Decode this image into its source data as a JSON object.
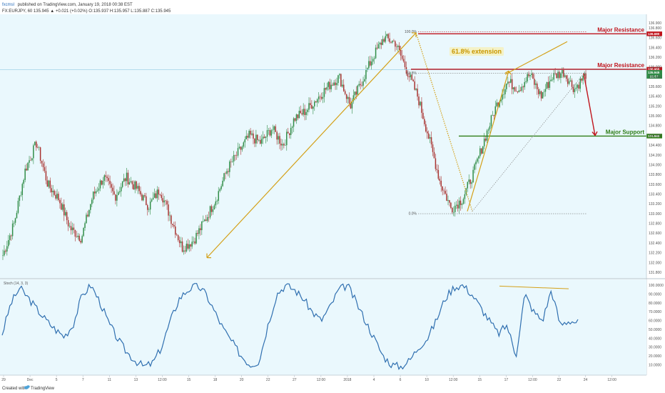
{
  "header": {
    "author": "fxcmsl",
    "published": "published on TradingView.com, January 19, 2018 00:38 EST",
    "symbol_line": "FX:EURJPY, 60  135.945  ▲ +0.021 (+0.02%)  O:135.937  H:135.957  L:135.887  C:135.945"
  },
  "footer": {
    "created_with": "Created with",
    "brand": "TradingView"
  },
  "colors": {
    "panel_bg": "#eaf8fd",
    "candle_up": "#2f8c46",
    "candle_down": "#a8322f",
    "resistance": "#c0141c",
    "support": "#2e7d16",
    "trend": "#d4a017",
    "stoch": "#2f6fb0",
    "price_line": "#9fd3e6"
  },
  "icons": {
    "brand_logo": "tradingview-cloud-icon"
  },
  "chart_data": {
    "type": "candlestick",
    "symbol": "FX:EURJPY",
    "interval": "60",
    "y_range": [
      131.7,
      137.05
    ],
    "y_ticks": [
      "136.900",
      "136.800",
      "136.600",
      "136.400",
      "136.200",
      "136.000",
      "135.800",
      "135.600",
      "135.400",
      "135.200",
      "135.000",
      "134.800",
      "134.600",
      "134.400",
      "134.200",
      "134.000",
      "133.800",
      "133.600",
      "133.400",
      "133.200",
      "133.000",
      "132.800",
      "132.600",
      "132.400",
      "132.200",
      "132.000",
      "131.800"
    ],
    "x_tick_labels": [
      "29",
      "Dec",
      "5",
      "7",
      "11",
      "13",
      "12:00",
      "15",
      "18",
      "20",
      "22",
      "27",
      "12:00",
      "2018",
      "4",
      "6",
      "10",
      "12:00",
      "15",
      "17",
      "12:00",
      "22",
      "24",
      "12:00"
    ],
    "price_path": [
      132.15,
      132.8,
      133.9,
      134.45,
      133.6,
      133.3,
      132.7,
      132.5,
      133.35,
      133.75,
      133.35,
      133.75,
      133.5,
      133.15,
      133.5,
      132.9,
      132.3,
      132.45,
      132.85,
      133.3,
      133.9,
      134.25,
      134.6,
      134.45,
      134.75,
      134.4,
      134.95,
      135.1,
      135.35,
      135.6,
      135.8,
      135.2,
      135.7,
      136.2,
      136.6,
      136.5,
      135.95,
      135.4,
      134.55,
      133.65,
      133.1,
      133.3,
      133.85,
      134.55,
      135.2,
      135.7,
      135.55,
      135.85,
      135.4,
      135.8,
      135.9,
      135.55,
      135.85
    ],
    "annotations": {
      "major_resistance_upper": {
        "label": "Major Resistance",
        "value": 136.68,
        "badge": "136.680"
      },
      "major_resistance_lower": {
        "label": "Major Resistance",
        "value": 135.955,
        "badge": "135.955"
      },
      "major_support": {
        "label": "Major Support",
        "value": 134.588,
        "badge": "134.588"
      },
      "fib_extension": "61.8% extension",
      "fib_100": "100.0%",
      "fib_618": "61.8%",
      "fib_0": "0.0%"
    },
    "current_price": {
      "value": 135.945,
      "badge": "135.945",
      "countdown": "21:57"
    },
    "stochastic": {
      "label": "Stoch (14, 3, 3)",
      "y_range": [
        0,
        105
      ],
      "y_ticks": [
        "100.0000",
        "90.0000",
        "80.0000",
        "70.0000",
        "60.0000",
        "50.0000",
        "40.0000",
        "30.0000",
        "20.0000",
        "10.0000"
      ],
      "path": [
        45,
        80,
        97,
        85,
        72,
        60,
        50,
        42,
        55,
        88,
        100,
        82,
        58,
        40,
        25,
        15,
        8,
        12,
        30,
        60,
        85,
        95,
        100,
        90,
        70,
        50,
        35,
        20,
        10,
        14,
        55,
        90,
        100,
        95,
        85,
        70,
        60,
        75,
        95,
        100,
        80,
        60,
        40,
        20,
        10,
        8,
        15,
        30,
        40,
        60,
        85,
        98,
        100,
        90,
        75,
        60,
        45,
        55,
        20,
        90,
        70,
        60,
        95,
        55,
        60,
        58
      ]
    }
  }
}
